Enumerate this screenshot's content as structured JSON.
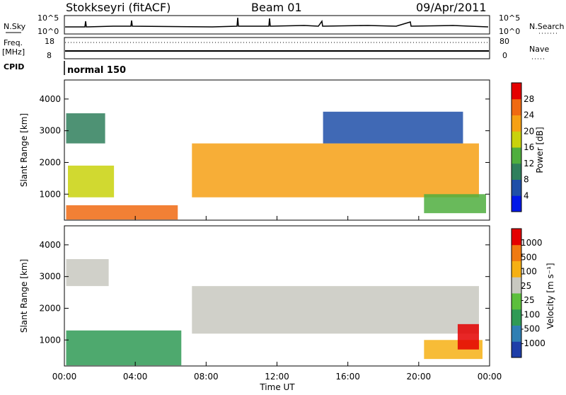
{
  "header": {
    "station": "Stokkseyri (fitACF)",
    "beam": "Beam 01",
    "date": "09/Apr/2011"
  },
  "strip_labels": {
    "nsky": "N.Sky",
    "nsearch": "N.Search",
    "freq_line1": "Freq.",
    "freq_line2": "[MHz]",
    "nave": "Nave",
    "cpid": "CPID",
    "mode": "normal 150",
    "nsky_ticks": [
      "10^5",
      "10^0"
    ],
    "nsearch_ticks": [
      "10^5",
      "10^0"
    ],
    "freq_ticks": [
      "18",
      "8"
    ],
    "nave_ticks": [
      "80",
      "0"
    ]
  },
  "x_axis": {
    "title": "Time UT",
    "ticks": [
      "00:00",
      "04:00",
      "08:00",
      "12:00",
      "16:00",
      "20:00",
      "00:00"
    ]
  },
  "chart_data": [
    {
      "type": "heatmap",
      "panel": "power",
      "ylabel": "Slant Range [km]",
      "colorbar_label": "Power [dB]",
      "x_range_hours": [
        0,
        24
      ],
      "ylim": [
        180,
        4600
      ],
      "y_ticks": [
        "1000",
        "2000",
        "3000",
        "4000"
      ],
      "colorbar_ticks": [
        "4",
        "8",
        "12",
        "16",
        "20",
        "24",
        "28"
      ],
      "colorbar_colors": [
        "#0018e8",
        "#1e4fa8",
        "#2f7f5c",
        "#4fae3e",
        "#c9d20c",
        "#f6a014",
        "#f06a12",
        "#e40000"
      ],
      "regions": [
        {
          "t0": 0.1,
          "t1": 6.4,
          "r0": 200,
          "r1": 650,
          "level": 6
        },
        {
          "t0": 0.2,
          "t1": 2.8,
          "r0": 900,
          "r1": 1900,
          "level": 4
        },
        {
          "t0": 0.1,
          "t1": 2.3,
          "r0": 2600,
          "r1": 3550,
          "level": 2
        },
        {
          "t0": 7.2,
          "t1": 23.4,
          "r0": 900,
          "r1": 2600,
          "level": 5
        },
        {
          "t0": 20.3,
          "t1": 23.8,
          "r0": 400,
          "r1": 1000,
          "level": 3
        },
        {
          "t0": 14.6,
          "t1": 22.5,
          "r0": 2600,
          "r1": 3600,
          "level": 1
        }
      ]
    },
    {
      "type": "heatmap",
      "panel": "velocity",
      "ylabel": "Slant Range [km]",
      "colorbar_label": "Velocity [m s⁻¹]",
      "x_range_hours": [
        0,
        24
      ],
      "ylim": [
        180,
        4600
      ],
      "y_ticks": [
        "1000",
        "2000",
        "3000",
        "4000"
      ],
      "colorbar_ticks": [
        "1000",
        "500",
        "100",
        "25",
        "-25",
        "-100",
        "-500",
        "-1000"
      ],
      "colorbar_colors": [
        "#1e3ea8",
        "#2f7fb3",
        "#2f9a55",
        "#5cbf3c",
        "#c8c8c0",
        "#f6b014",
        "#f07a12",
        "#e40000"
      ],
      "regions": [
        {
          "t0": 0.1,
          "t1": 6.6,
          "r0": 200,
          "r1": 1300,
          "level": 2
        },
        {
          "t0": 0.1,
          "t1": 2.5,
          "r0": 2700,
          "r1": 3550,
          "level": 4
        },
        {
          "t0": 7.2,
          "t1": 23.4,
          "r0": 1200,
          "r1": 2700,
          "level": 4
        },
        {
          "t0": 20.3,
          "t1": 23.6,
          "r0": 400,
          "r1": 1000,
          "level": 5
        },
        {
          "t0": 22.2,
          "t1": 23.4,
          "r0": 700,
          "r1": 1500,
          "level": 7
        }
      ]
    }
  ],
  "colors": {
    "frame": "#000000",
    "background": "#ffffff"
  }
}
